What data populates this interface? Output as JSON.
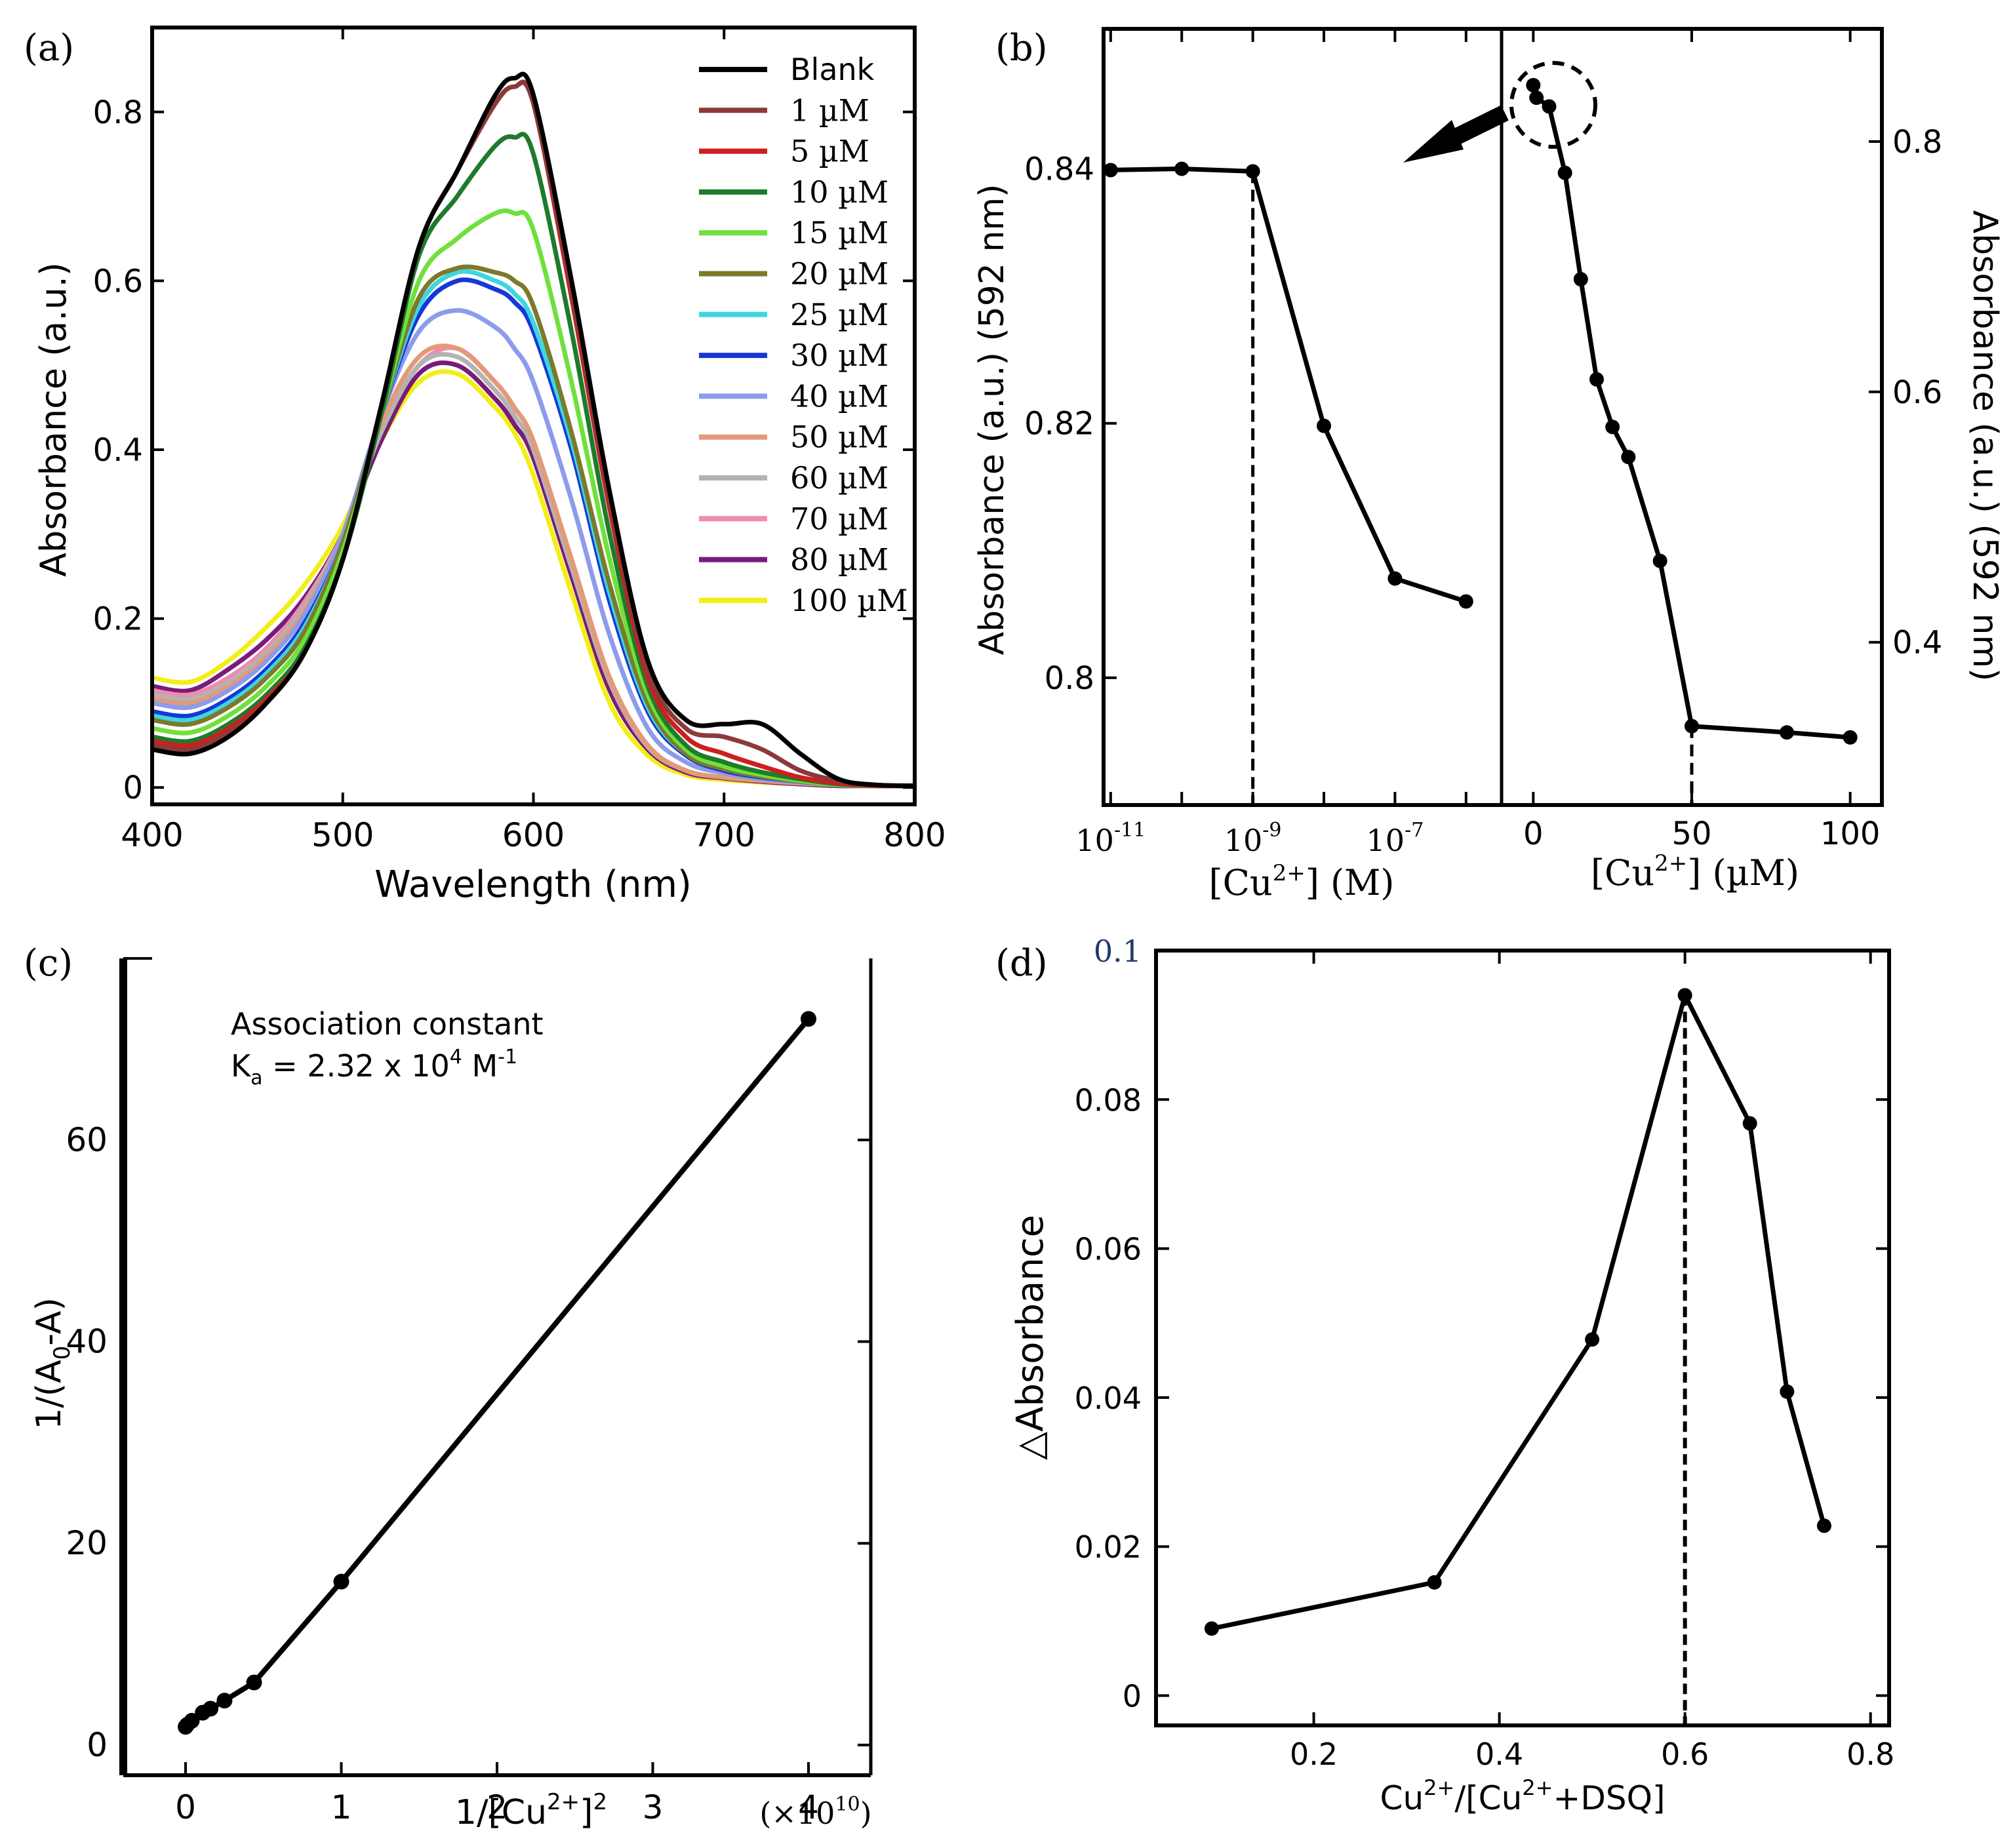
{
  "chart_data": [
    {
      "panel": "(a)",
      "type": "line",
      "xlabel": "Wavelength (nm)",
      "ylabel": "Absorbance (a.u.)",
      "xlim": [
        400,
        800
      ],
      "ylim": [
        -0.02,
        0.9
      ],
      "xticks": [
        "400",
        "500",
        "600",
        "700",
        "800"
      ],
      "yticks": [
        "0",
        "0.2",
        "0.4",
        "0.6",
        "0.8"
      ],
      "x": [
        400,
        420,
        440,
        460,
        480,
        500,
        520,
        540,
        560,
        580,
        590,
        600,
        620,
        640,
        660,
        680,
        700,
        720,
        740,
        760,
        780,
        800
      ],
      "series": [
        {
          "name": "Blank",
          "color": "#000000",
          "values": [
            0.045,
            0.04,
            0.06,
            0.1,
            0.16,
            0.27,
            0.45,
            0.64,
            0.73,
            0.82,
            0.84,
            0.82,
            0.6,
            0.35,
            0.15,
            0.08,
            0.075,
            0.075,
            0.04,
            0.01,
            0.003,
            0.002
          ]
        },
        {
          "name": "1 µM",
          "color": "#8B3A3A",
          "values": [
            0.05,
            0.045,
            0.065,
            0.1,
            0.16,
            0.27,
            0.45,
            0.64,
            0.73,
            0.81,
            0.83,
            0.81,
            0.59,
            0.34,
            0.14,
            0.07,
            0.06,
            0.045,
            0.02,
            0.008,
            0.003,
            0.002
          ]
        },
        {
          "name": "5 µM",
          "color": "#CC1F1F",
          "values": [
            0.055,
            0.05,
            0.07,
            0.105,
            0.16,
            0.27,
            0.45,
            0.64,
            0.73,
            0.81,
            0.83,
            0.81,
            0.58,
            0.33,
            0.13,
            0.06,
            0.04,
            0.025,
            0.012,
            0.005,
            0.002,
            0.002
          ]
        },
        {
          "name": "10 µM",
          "color": "#1E7B2C",
          "values": [
            0.06,
            0.055,
            0.075,
            0.11,
            0.165,
            0.27,
            0.44,
            0.63,
            0.7,
            0.76,
            0.77,
            0.75,
            0.54,
            0.3,
            0.12,
            0.05,
            0.03,
            0.018,
            0.01,
            0.004,
            0.002,
            0.002
          ]
        },
        {
          "name": "15 µM",
          "color": "#6FE03C",
          "values": [
            0.07,
            0.065,
            0.085,
            0.12,
            0.175,
            0.28,
            0.44,
            0.6,
            0.65,
            0.68,
            0.68,
            0.66,
            0.48,
            0.27,
            0.11,
            0.045,
            0.025,
            0.015,
            0.008,
            0.003,
            0.002,
            0.002
          ]
        },
        {
          "name": "20 µM",
          "color": "#7C7A2A",
          "values": [
            0.08,
            0.075,
            0.095,
            0.13,
            0.185,
            0.29,
            0.44,
            0.58,
            0.615,
            0.61,
            0.6,
            0.57,
            0.42,
            0.24,
            0.1,
            0.04,
            0.022,
            0.013,
            0.007,
            0.003,
            0.002,
            0.002
          ]
        },
        {
          "name": "25 µM",
          "color": "#3ED6E0",
          "values": [
            0.085,
            0.08,
            0.1,
            0.135,
            0.19,
            0.29,
            0.44,
            0.57,
            0.61,
            0.6,
            0.585,
            0.55,
            0.41,
            0.23,
            0.095,
            0.04,
            0.022,
            0.013,
            0.007,
            0.003,
            0.002,
            0.002
          ]
        },
        {
          "name": "30 µM",
          "color": "#1538D6",
          "values": [
            0.09,
            0.085,
            0.105,
            0.14,
            0.195,
            0.29,
            0.44,
            0.56,
            0.6,
            0.59,
            0.575,
            0.54,
            0.4,
            0.22,
            0.09,
            0.038,
            0.02,
            0.012,
            0.007,
            0.003,
            0.002,
            0.002
          ]
        },
        {
          "name": "40 µM",
          "color": "#8D9BEA",
          "values": [
            0.1,
            0.095,
            0.115,
            0.15,
            0.205,
            0.3,
            0.44,
            0.54,
            0.565,
            0.545,
            0.52,
            0.48,
            0.34,
            0.18,
            0.07,
            0.03,
            0.017,
            0.01,
            0.006,
            0.003,
            0.002,
            0.002
          ]
        },
        {
          "name": "50 µM",
          "color": "#E39A78",
          "values": [
            0.105,
            0.1,
            0.12,
            0.155,
            0.21,
            0.3,
            0.43,
            0.51,
            0.52,
            0.48,
            0.45,
            0.41,
            0.27,
            0.13,
            0.05,
            0.02,
            0.012,
            0.008,
            0.005,
            0.003,
            0.002,
            0.002
          ]
        },
        {
          "name": "60 µM",
          "color": "#B3B3B3",
          "values": [
            0.11,
            0.105,
            0.125,
            0.16,
            0.215,
            0.3,
            0.42,
            0.5,
            0.51,
            0.47,
            0.44,
            0.4,
            0.26,
            0.125,
            0.048,
            0.02,
            0.012,
            0.008,
            0.005,
            0.003,
            0.002,
            0.002
          ]
        },
        {
          "name": "70 µM",
          "color": "#F08AB0",
          "values": [
            0.115,
            0.11,
            0.13,
            0.165,
            0.22,
            0.3,
            0.42,
            0.5,
            0.52,
            0.48,
            0.45,
            0.41,
            0.27,
            0.13,
            0.05,
            0.02,
            0.012,
            0.008,
            0.005,
            0.003,
            0.002,
            0.002
          ]
        },
        {
          "name": "80 µM",
          "color": "#7A1B7A",
          "values": [
            0.12,
            0.115,
            0.14,
            0.175,
            0.225,
            0.3,
            0.41,
            0.49,
            0.5,
            0.46,
            0.43,
            0.39,
            0.25,
            0.115,
            0.045,
            0.018,
            0.011,
            0.007,
            0.004,
            0.002,
            0.002,
            0.002
          ]
        },
        {
          "name": "100 µM",
          "color": "#F2EE16",
          "values": [
            0.13,
            0.125,
            0.15,
            0.19,
            0.24,
            0.31,
            0.41,
            0.48,
            0.49,
            0.45,
            0.42,
            0.37,
            0.23,
            0.1,
            0.038,
            0.015,
            0.009,
            0.006,
            0.004,
            0.002,
            0.002,
            0.002
          ]
        }
      ]
    },
    {
      "panel": "(b)",
      "type": "line",
      "subplots": [
        {
          "side": "left",
          "xscale": "log",
          "xlabel": "[Cu",
          "xlabel_sup": "2+",
          "xlabel_suffix": "] (M)",
          "ylabel": "Absorbance (a.u.) (592 nm)",
          "xlim": [
            -11.1,
            -5.5
          ],
          "ylim": [
            0.79,
            0.851
          ],
          "yticks": [
            "0.8",
            "0.82",
            "0.84"
          ],
          "xtick_base": "10",
          "xtick_exps": [
            "-11",
            "-9",
            "-7"
          ],
          "log_x": [
            -11,
            -10,
            -9,
            -8,
            -7,
            -6
          ],
          "values": [
            0.8399,
            0.84,
            0.8398,
            0.8198,
            0.8078,
            0.806
          ],
          "dashed_marker_x": -9
        },
        {
          "side": "right",
          "xlabel": "[Cu",
          "xlabel_sup": "2+",
          "xlabel_suffix": "] (µM)",
          "ylabel": "Absorbance (a.u.) (592 nm)",
          "xlim": [
            -10,
            110
          ],
          "ylim": [
            0.27,
            0.89
          ],
          "xticks": [
            "0",
            "50",
            "100"
          ],
          "yticks": [
            "0.4",
            "0.6",
            "0.8"
          ],
          "x": [
            0,
            1,
            5,
            10,
            15,
            20,
            25,
            30,
            40,
            50,
            80,
            100
          ],
          "values": [
            0.845,
            0.835,
            0.828,
            0.775,
            0.69,
            0.61,
            0.572,
            0.548,
            0.465,
            0.333,
            0.328,
            0.324
          ],
          "dashed_marker_x": 50
        }
      ]
    },
    {
      "panel": "(c)",
      "type": "scatter",
      "xlabel": "1/[Cu",
      "xlabel_sup": "2+",
      "xlabel_suffix": "]",
      "xlabel_sup2": "2",
      "ylabel": "1/(A",
      "ylabel_sub": "0",
      "ylabel_suffix": "-A)",
      "x_multiplier": "(×10",
      "x_multiplier_sup": "10",
      "x_multiplier_suffix": ")",
      "xlim": [
        -0.4,
        4.4
      ],
      "ylim": [
        -3,
        78
      ],
      "xticks": [
        "0",
        "1",
        "2",
        "3",
        "4"
      ],
      "yticks": [
        "0",
        "20",
        "40",
        "60"
      ],
      "x": [
        0,
        0.01,
        0.04,
        0.11,
        0.16,
        0.25,
        0.44,
        1.0,
        4.0
      ],
      "values": [
        1.8,
        2.0,
        2.4,
        3.2,
        3.6,
        4.4,
        6.2,
        16.2,
        72.0
      ],
      "annotation_line1": "Association constant",
      "annotation_k": "K",
      "annotation_k_sub": "a",
      "annotation_eq": " = 2.32 x 10",
      "annotation_exp": "4",
      "annotation_unit": " M",
      "annotation_unit_sup": "-1"
    },
    {
      "panel": "(d)",
      "type": "line",
      "xlabel": "Cu",
      "xlabel_sup": "2+",
      "xlabel_mid": "/[Cu",
      "xlabel_sup2": "2+",
      "xlabel_suffix": "+DSQ]",
      "ylabel": "△Absorbance",
      "xlim": [
        0.03,
        0.82
      ],
      "ylim": [
        -0.004,
        0.1
      ],
      "xticks": [
        "0.2",
        "0.4",
        "0.6",
        "0.8"
      ],
      "yticks": [
        "0",
        "0.02",
        "0.04",
        "0.06",
        "0.08",
        "0.1"
      ],
      "x": [
        0.09,
        0.33,
        0.5,
        0.6,
        0.67,
        0.71,
        0.75
      ],
      "values": [
        0.009,
        0.0152,
        0.0478,
        0.094,
        0.0768,
        0.0408,
        0.0228
      ],
      "dashed_marker_x": 0.6
    }
  ]
}
